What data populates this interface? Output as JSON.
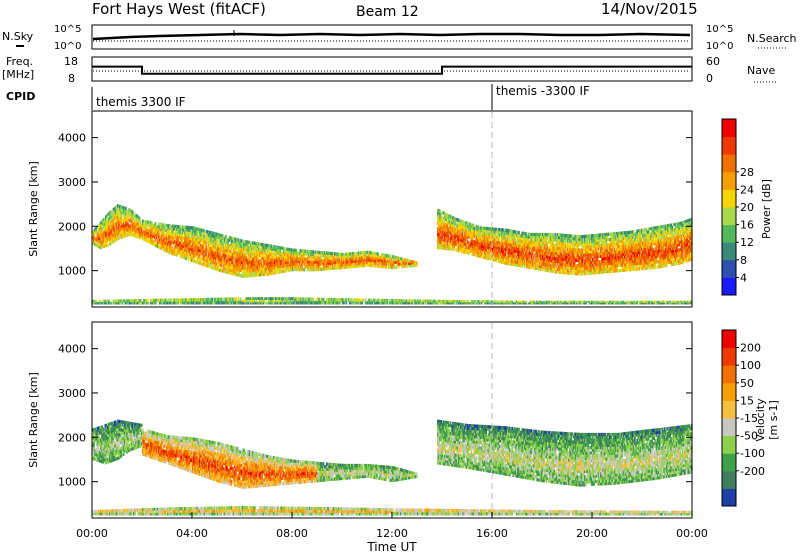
{
  "header": {
    "station": "Fort Hays West (fitACF)",
    "beam": "Beam 12",
    "date": "14/Nov/2015"
  },
  "chart_data": [
    {
      "type": "line",
      "id": "noise",
      "left_label": "N.Sky",
      "right_label": "N.Search",
      "left_ticks": [
        "10^5",
        "10^0"
      ],
      "right_ticks": [
        "10^5",
        "10^0"
      ]
    },
    {
      "type": "line",
      "id": "freq",
      "left_label_top": "Freq.",
      "left_label_bottom": "[MHz]",
      "right_label": "Nave",
      "left_ticks": [
        "18",
        "8"
      ],
      "right_ticks": [
        "60",
        "0"
      ],
      "series": [
        {
          "x": [
            0,
            2,
            2,
            14,
            14,
            24
          ],
          "y": [
            14,
            14,
            11,
            11,
            14,
            14
          ]
        }
      ]
    },
    {
      "type": "table",
      "id": "cpid",
      "label": "CPID",
      "segments": [
        {
          "label": "themis 3300 IF",
          "x_start": 0,
          "x_end": 16
        },
        {
          "label": "themis -3300 IF",
          "x_start": 16,
          "x_end": 24
        }
      ]
    },
    {
      "type": "heatmap",
      "id": "power",
      "ylabel": "Slant Range [km]",
      "yticks": [
        "1000",
        "2000",
        "3000",
        "4000"
      ],
      "ylim": [
        180,
        4600
      ],
      "xlim": [
        0,
        24
      ],
      "colorbar": {
        "label": "Power [dB]",
        "ticks": [
          "4",
          "8",
          "12",
          "16",
          "20",
          "24",
          "28"
        ],
        "colors": [
          "#1a1aff",
          "#2d4fb0",
          "#3a8a7a",
          "#53b75c",
          "#a9d94c",
          "#f5d400",
          "#f5a000",
          "#f07000",
          "#ee3a00",
          "#ee0000"
        ]
      },
      "regions": [
        {
          "x": [
            0,
            0.3,
            0.6,
            1.0,
            1.5,
            2.0,
            3.0,
            4.0,
            5.0,
            6.0,
            7.0,
            8.0,
            9.0,
            10.0,
            11.0,
            12.0,
            13.0
          ],
          "y_low": [
            1600,
            1500,
            1550,
            1700,
            1800,
            1700,
            1400,
            1200,
            1000,
            850,
            900,
            1000,
            1000,
            1050,
            1100,
            1050,
            1100
          ],
          "y_high": [
            1900,
            2100,
            2300,
            2500,
            2400,
            2150,
            2050,
            2000,
            1850,
            1700,
            1600,
            1500,
            1450,
            1400,
            1450,
            1350,
            1200
          ],
          "level": 0.8
        },
        {
          "x": [
            13.8,
            14.5,
            15.5,
            16.5,
            17.5,
            18.5,
            19.5,
            20.5,
            21.5,
            22.5,
            23.5,
            24.0
          ],
          "y_low": [
            1500,
            1450,
            1300,
            1150,
            1050,
            950,
            900,
            950,
            1000,
            1050,
            1150,
            1250
          ],
          "y_high": [
            2400,
            2200,
            2000,
            1950,
            1850,
            1850,
            1800,
            1850,
            1900,
            2000,
            2100,
            2200
          ],
          "level": 0.85
        },
        {
          "x": [
            0,
            2,
            4,
            6,
            8,
            10,
            12,
            14,
            16,
            18,
            20,
            22,
            24
          ],
          "y_low": [
            250,
            250,
            250,
            250,
            250,
            250,
            250,
            250,
            250,
            250,
            250,
            250,
            250
          ],
          "y_high": [
            340,
            360,
            380,
            400,
            400,
            380,
            360,
            340,
            330,
            320,
            320,
            320,
            320
          ],
          "level": 0.5
        }
      ]
    },
    {
      "type": "heatmap",
      "id": "velocity",
      "ylabel": "Slant Range [km]",
      "yticks": [
        "1000",
        "2000",
        "3000",
        "4000"
      ],
      "ylim": [
        180,
        4600
      ],
      "xlim": [
        0,
        24
      ],
      "xticks": [
        "00:00",
        "04:00",
        "08:00",
        "12:00",
        "16:00",
        "20:00",
        "00:00"
      ],
      "xlabel": "Time UT",
      "colorbar": {
        "label_main": "Velocity",
        "label_units": "[m s-1]",
        "ticks": [
          "200",
          "100",
          "50",
          "15",
          "-15",
          "-50",
          "-100",
          "-200"
        ],
        "colors": [
          "#1f3fa8",
          "#3f7f5f",
          "#3fa04a",
          "#8fd04a",
          "#c8c8c0",
          "#f5c040",
          "#f5a000",
          "#f07000",
          "#ee3a00",
          "#ee0000"
        ]
      },
      "regions": [
        {
          "x": [
            0,
            0.5,
            1.0,
            1.5,
            2.0
          ],
          "y_low": [
            1500,
            1400,
            1500,
            1700,
            1800
          ],
          "y_high": [
            2200,
            2300,
            2400,
            2350,
            2300
          ],
          "level": 0.4
        },
        {
          "x": [
            2.0,
            3.0,
            4.0,
            5.0,
            6.0,
            7.0,
            8.0,
            9.0
          ],
          "y_low": [
            1600,
            1400,
            1200,
            1000,
            850,
            900,
            950,
            1000
          ],
          "y_high": [
            2200,
            2050,
            2000,
            1900,
            1750,
            1600,
            1500,
            1450
          ],
          "level": 0.85
        },
        {
          "x": [
            9.0,
            10.0,
            11.0,
            12.0,
            13.0
          ],
          "y_low": [
            1000,
            1050,
            1100,
            1000,
            1100
          ],
          "y_high": [
            1450,
            1400,
            1400,
            1350,
            1200
          ],
          "level": 0.45
        },
        {
          "x": [
            13.8,
            15,
            16.5,
            18,
            19.5,
            21,
            22.5,
            24
          ],
          "y_low": [
            1400,
            1300,
            1150,
            1000,
            900,
            950,
            1050,
            1200
          ],
          "y_high": [
            2400,
            2300,
            2250,
            2150,
            2100,
            2100,
            2200,
            2300
          ],
          "level": 0.45
        },
        {
          "x": [
            0,
            3,
            6,
            9,
            12,
            15,
            18,
            21,
            24
          ],
          "y_low": [
            250,
            250,
            250,
            250,
            250,
            250,
            250,
            250,
            250
          ],
          "y_high": [
            360,
            420,
            450,
            430,
            400,
            380,
            360,
            350,
            340
          ],
          "level": 0.6
        }
      ]
    }
  ]
}
